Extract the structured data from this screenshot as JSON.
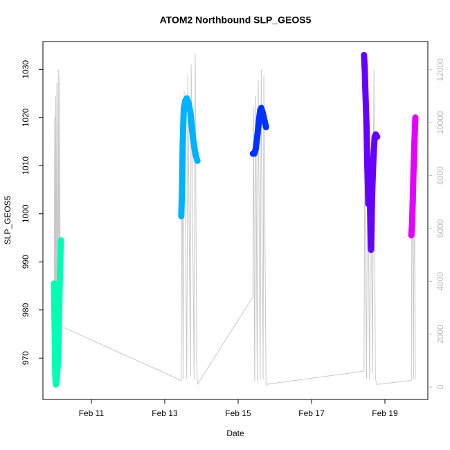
{
  "chart_data": {
    "type": "line",
    "title": "ATOM2 Northbound SLP_GEOS5",
    "x_label": "Date",
    "y_label": "SLP_GEOS5",
    "xlim": [
      9.68,
      20.17
    ],
    "xticks": [
      {
        "value": 11,
        "label": "Feb 11"
      },
      {
        "value": 13,
        "label": "Feb 13"
      },
      {
        "value": 15,
        "label": "Feb 15"
      },
      {
        "value": 17,
        "label": "Feb 17"
      },
      {
        "value": 19,
        "label": "Feb 19"
      }
    ],
    "ylim": [
      961.4,
      1035.8
    ],
    "yticks": [
      970,
      980,
      990,
      1000,
      1010,
      1020,
      1030
    ],
    "y2lim": [
      -470,
      13070
    ],
    "y2ticks": [
      0,
      2000,
      4000,
      6000,
      8000,
      10000,
      12000
    ],
    "y2_color": "#bbbbbb",
    "series": [
      {
        "axis": "y2",
        "color": "#c8c8c8",
        "width": 1,
        "x": [
          9.98,
          10.0,
          10.01,
          10.03,
          10.04,
          10.06,
          10.08,
          10.1,
          10.12,
          10.14,
          10.15,
          10.17,
          13.45,
          13.47,
          13.5,
          13.53,
          13.6,
          13.63,
          13.7,
          13.72,
          13.8,
          13.83,
          13.87,
          13.89,
          15.4,
          15.42,
          15.45,
          15.48,
          15.52,
          15.55,
          15.6,
          15.63,
          15.68,
          15.7,
          15.76,
          18.43,
          18.45,
          18.5,
          18.53,
          18.58,
          18.62,
          18.66,
          18.7,
          18.74,
          18.79,
          19.72,
          19.74,
          19.78,
          19.8,
          19.83
        ],
        "values": [
          0,
          10200,
          500,
          11000,
          500,
          11500,
          600,
          12000,
          700,
          11800,
          2300,
          2300,
          250,
          10500,
          300,
          11200,
          300,
          11800,
          400,
          12200,
          300,
          12600,
          1000,
          100,
          3400,
          10600,
          200,
          11000,
          200,
          11600,
          300,
          12000,
          300,
          11800,
          100,
          600,
          8500,
          300,
          11000,
          300,
          9000,
          500,
          12000,
          300,
          100,
          250,
          9000,
          300,
          10000,
          300
        ]
      },
      {
        "color": "#00ffb2",
        "width": 9,
        "x": [
          9.98,
          9.99,
          10.0,
          10.01,
          10.02,
          10.03,
          10.05,
          10.07,
          10.09,
          10.11,
          10.13,
          10.15,
          10.17
        ],
        "values": [
          985.5,
          982,
          976,
          970,
          966,
          964.5,
          965,
          967,
          969,
          975,
          983,
          990,
          994.5
        ]
      },
      {
        "color": "#00b2ff",
        "width": 9,
        "x": [
          13.45,
          13.47,
          13.49,
          13.52,
          13.56,
          13.6,
          13.65,
          13.7,
          13.75,
          13.8,
          13.85,
          13.89
        ],
        "values": [
          999.5,
          1005,
          1015,
          1022,
          1023.5,
          1024,
          1023,
          1021,
          1017,
          1014,
          1012,
          1011
        ]
      },
      {
        "color": "#0033ff",
        "width": 9,
        "x": [
          15.4,
          15.44,
          15.48,
          15.52,
          15.56,
          15.6,
          15.63,
          15.67,
          15.7,
          15.73,
          15.76
        ],
        "values": [
          1012.5,
          1012.5,
          1013.5,
          1016,
          1019,
          1021.5,
          1022,
          1021,
          1020,
          1019,
          1018
        ]
      },
      {
        "color": "#6600ff",
        "width": 9,
        "x": [
          18.43,
          18.45,
          18.47,
          18.5,
          18.52,
          18.55,
          18.58,
          18.6,
          18.62,
          18.64,
          18.66,
          18.69,
          18.72,
          18.75,
          18.79
        ],
        "values": [
          1033,
          1030,
          1025,
          1018,
          1010,
          1002,
          1006,
          1000,
          992.5,
          1000,
          1006,
          1012,
          1016,
          1016.5,
          1016
        ]
      },
      {
        "color": "#e500ff",
        "width": 9,
        "x": [
          19.72,
          19.74,
          19.76,
          19.78,
          19.8,
          19.82,
          19.83
        ],
        "values": [
          995.5,
          998,
          1003,
          1009,
          1014,
          1018,
          1020
        ]
      }
    ]
  }
}
